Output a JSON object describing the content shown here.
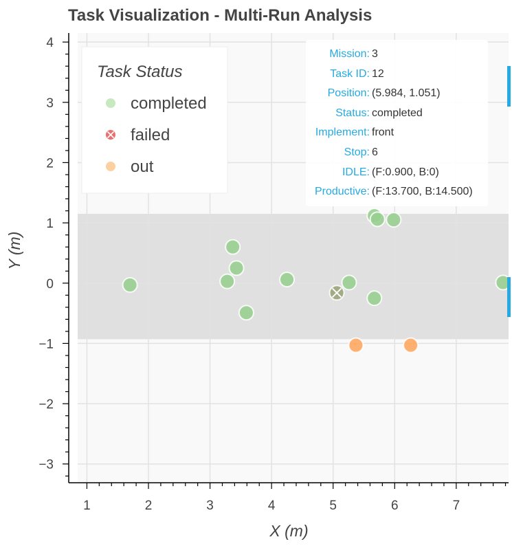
{
  "chart_data": {
    "type": "scatter",
    "title": "Task Visualization - Multi-Run Analysis",
    "xlabel": "X (m)",
    "ylabel": "Y (m)",
    "xlim": [
      0.85,
      7.85
    ],
    "ylim": [
      -3.3,
      4.15
    ],
    "x_ticks": [
      1,
      2,
      3,
      4,
      5,
      6,
      7
    ],
    "y_ticks": [
      -3,
      -2,
      -1,
      0,
      1,
      2,
      3,
      4
    ],
    "y_tick_labels": [
      "−3",
      "−2",
      "−1",
      "0",
      "1",
      "2",
      "3",
      "4"
    ],
    "grid": true,
    "band": {
      "y_min": -0.93,
      "y_max": 1.15,
      "color": "#d9d9d9"
    },
    "legend": {
      "title": "Task Status",
      "placement": "top-left",
      "items": [
        {
          "label": "completed",
          "color": "#c7e9c0",
          "marker": "circle"
        },
        {
          "label": "failed",
          "color": "#e45756",
          "marker": "circle-x"
        },
        {
          "label": "out",
          "color": "#fdd0a2",
          "marker": "circle"
        }
      ]
    },
    "series": [
      {
        "name": "completed",
        "color": "#98cf90",
        "marker": "circle",
        "points": [
          {
            "x": 1.7,
            "y": -0.03
          },
          {
            "x": 3.28,
            "y": 0.03
          },
          {
            "x": 3.37,
            "y": 0.6
          },
          {
            "x": 3.43,
            "y": 0.25
          },
          {
            "x": 3.59,
            "y": -0.49
          },
          {
            "x": 4.25,
            "y": 0.06
          },
          {
            "x": 5.26,
            "y": 0.01
          },
          {
            "x": 5.67,
            "y": -0.25
          },
          {
            "x": 5.67,
            "y": 1.12
          },
          {
            "x": 5.72,
            "y": 1.06
          },
          {
            "x": 5.984,
            "y": 1.051
          },
          {
            "x": 7.76,
            "y": 0.01
          }
        ]
      },
      {
        "name": "failed",
        "color": "#9aa57a",
        "marker": "circle-x",
        "points": [
          {
            "x": 5.06,
            "y": -0.16
          }
        ]
      },
      {
        "name": "out",
        "color": "#fda760",
        "marker": "circle",
        "points": [
          {
            "x": 5.37,
            "y": -1.03
          },
          {
            "x": 6.26,
            "y": -1.03
          }
        ]
      }
    ],
    "tooltip": {
      "rows": [
        {
          "key": "Mission:",
          "value": "3"
        },
        {
          "key": "Task ID:",
          "value": "12"
        },
        {
          "key": "Position:",
          "value": "(5.984, 1.051)"
        },
        {
          "key": "Status:",
          "value": "completed"
        },
        {
          "key": "Implement:",
          "value": "front"
        },
        {
          "key": "Stop:",
          "value": "6"
        },
        {
          "key": "IDLE:",
          "value": "(F:0.900, B:0)"
        },
        {
          "key": "Productive:",
          "value": "(F:13.700, B:14.500)"
        }
      ]
    },
    "colors": {
      "plot_background": "#f9f9f9",
      "grid": "#e2e2e2",
      "axis": "#000000",
      "text": "#444444",
      "tooltip_key": "#26aae1",
      "edge_marker": "#26aae1"
    }
  }
}
